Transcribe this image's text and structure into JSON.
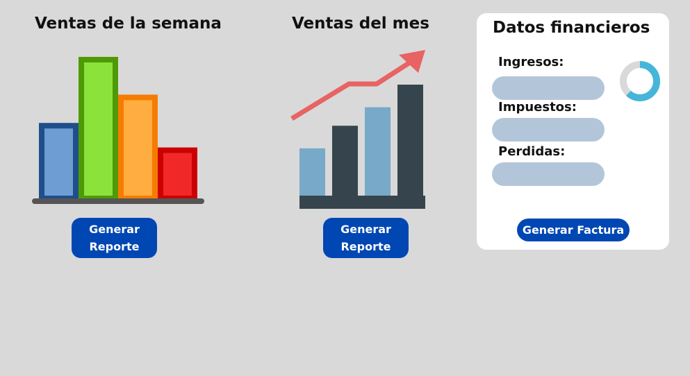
{
  "colors": {
    "background": "#d9d9d9",
    "button": "#0047b3",
    "panel": "#ffffff",
    "input_fill": "#b3c6d9"
  },
  "weekly_sales": {
    "title": "Ventas de la semana",
    "report_button": {
      "line1": "Generar",
      "line2": "Reporte"
    },
    "icon": "bar-chart-icon",
    "chart_data": {
      "type": "bar",
      "values": [
        4,
        7.5,
        5.5,
        2.7
      ],
      "ylim": [
        0,
        7.5
      ],
      "colors": [
        {
          "fill": "#6e9dd4",
          "border": "#1f4e8c"
        },
        {
          "fill": "#8be23a",
          "border": "#4e9a06"
        },
        {
          "fill": "#ffad40",
          "border": "#f57c00"
        },
        {
          "fill": "#f02828",
          "border": "#cc0000"
        }
      ],
      "baseline_color": "#555555"
    }
  },
  "monthly_sales": {
    "title": "Ventas del mes",
    "report_button": {
      "line1": "Generar",
      "line2": "Reporte"
    },
    "icon": "trend-chart-icon",
    "chart_data": {
      "type": "bar",
      "values": [
        2.3,
        3.4,
        4.3,
        5.4
      ],
      "ylim": [
        0,
        5.4
      ],
      "colors": [
        "#78a9c8",
        "#36454d",
        "#78a9c8",
        "#36454d"
      ],
      "baseline_color": "#36454d",
      "trend_color": "#e86363",
      "trend_icon": "up-trend-arrow-icon"
    }
  },
  "financial": {
    "title": "Datos financieros",
    "fields": [
      {
        "label": "Ingresos:",
        "value": "",
        "placeholder": ""
      },
      {
        "label": "Impuestos:",
        "value": "",
        "placeholder": ""
      },
      {
        "label": "Perdidas:",
        "value": "",
        "placeholder": ""
      }
    ],
    "invoice_button": "Generar Factura",
    "donut": {
      "icon": "donut-progress-icon",
      "progress": 0.62,
      "track_color": "#d9d9d9",
      "fill_color": "#45b6d9"
    }
  }
}
